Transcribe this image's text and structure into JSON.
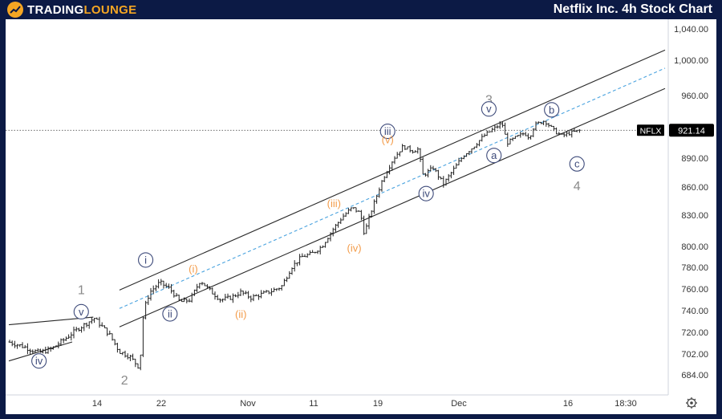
{
  "header": {
    "logo_main": "TRADING",
    "logo_accent": "LOUNGE",
    "title": "Netflix Inc. 4h Stock Chart"
  },
  "colors": {
    "frame": "#0c1a45",
    "logo": "#f5a623",
    "candle": "#1f1f1f",
    "channel": "#2a2a2a",
    "midline": "#4aa3df",
    "wave_black": "#3d4a7a",
    "wave_orange": "#f39c4a",
    "wave_gray": "#8a8a8a"
  },
  "chart_data": {
    "type": "ohlc",
    "symbol": "NFLX",
    "last_price": 921.14,
    "last_price_label": "921.14",
    "y_ticks": [
      "1,040.00",
      "1,000.00",
      "960.00",
      "890.00",
      "860.00",
      "830.00",
      "800.00",
      "780.00",
      "760.00",
      "740.00",
      "720.00",
      "702.00",
      "684.00"
    ],
    "x_ticks": [
      "14",
      "22",
      "Nov",
      "11",
      "19",
      "Dec",
      "16",
      "18:30"
    ],
    "price_path": [
      {
        "t": 0.0,
        "p": 712
      },
      {
        "t": 1.5,
        "p": 708
      },
      {
        "t": 3.0,
        "p": 703
      },
      {
        "t": 4.2,
        "p": 706
      },
      {
        "t": 5.5,
        "p": 714
      },
      {
        "t": 7.0,
        "p": 724
      },
      {
        "t": 8.5,
        "p": 733
      },
      {
        "t": 9.0,
        "p": 728
      },
      {
        "t": 10.0,
        "p": 718
      },
      {
        "t": 11.0,
        "p": 704
      },
      {
        "t": 12.0,
        "p": 700
      },
      {
        "t": 13.0,
        "p": 690
      },
      {
        "t": 13.4,
        "p": 740
      },
      {
        "t": 14.0,
        "p": 757
      },
      {
        "t": 15.0,
        "p": 766
      },
      {
        "t": 16.0,
        "p": 760
      },
      {
        "t": 17.0,
        "p": 748
      },
      {
        "t": 18.0,
        "p": 750
      },
      {
        "t": 19.0,
        "p": 768
      },
      {
        "t": 20.0,
        "p": 758
      },
      {
        "t": 21.0,
        "p": 750
      },
      {
        "t": 22.0,
        "p": 752
      },
      {
        "t": 23.0,
        "p": 757
      },
      {
        "t": 24.0,
        "p": 752
      },
      {
        "t": 25.0,
        "p": 755
      },
      {
        "t": 26.0,
        "p": 758
      },
      {
        "t": 27.0,
        "p": 762
      },
      {
        "t": 28.0,
        "p": 780
      },
      {
        "t": 29.0,
        "p": 790
      },
      {
        "t": 30.0,
        "p": 793
      },
      {
        "t": 31.0,
        "p": 800
      },
      {
        "t": 32.0,
        "p": 815
      },
      {
        "t": 33.0,
        "p": 828
      },
      {
        "t": 34.0,
        "p": 838
      },
      {
        "t": 34.8,
        "p": 832
      },
      {
        "t": 35.2,
        "p": 812
      },
      {
        "t": 36.0,
        "p": 838
      },
      {
        "t": 37.0,
        "p": 868
      },
      {
        "t": 38.0,
        "p": 888
      },
      {
        "t": 39.0,
        "p": 903
      },
      {
        "t": 40.0,
        "p": 898
      },
      {
        "t": 40.5,
        "p": 900
      },
      {
        "t": 41.0,
        "p": 872
      },
      {
        "t": 42.0,
        "p": 880
      },
      {
        "t": 43.0,
        "p": 863
      },
      {
        "t": 44.0,
        "p": 878
      },
      {
        "t": 45.0,
        "p": 893
      },
      {
        "t": 46.0,
        "p": 903
      },
      {
        "t": 47.0,
        "p": 915
      },
      {
        "t": 48.0,
        "p": 923
      },
      {
        "t": 48.8,
        "p": 929
      },
      {
        "t": 49.3,
        "p": 907
      },
      {
        "t": 50.0,
        "p": 912
      },
      {
        "t": 51.0,
        "p": 918
      },
      {
        "t": 51.5,
        "p": 913
      },
      {
        "t": 52.0,
        "p": 927
      },
      {
        "t": 53.0,
        "p": 932
      },
      {
        "t": 54.0,
        "p": 920
      },
      {
        "t": 54.7,
        "p": 915
      },
      {
        "t": 55.5,
        "p": 918
      },
      {
        "t": 56.5,
        "p": 921
      }
    ],
    "channel": {
      "upper": [
        {
          "t": 11.0,
          "p": 759
        },
        {
          "t": 63.2,
          "p": 1013
        }
      ],
      "lower": [
        {
          "t": 11.0,
          "p": 725
        },
        {
          "t": 63.2,
          "p": 968
        }
      ],
      "middle": [
        {
          "t": 11.0,
          "p": 742
        },
        {
          "t": 63.2,
          "p": 991
        }
      ],
      "left": [
        {
          "t": 0.0,
          "p": 727
        },
        {
          "t": 8.4,
          "p": 734
        },
        {
          "t": 0.0,
          "p": 696
        },
        {
          "t": 6.3,
          "p": 712
        }
      ]
    },
    "wave_labels": [
      {
        "text": "1",
        "style": "gray",
        "t": 7.2,
        "p": 759
      },
      {
        "text": "v",
        "style": "circle",
        "t": 7.2,
        "p": 739
      },
      {
        "text": "iv",
        "style": "circle",
        "t": 3.0,
        "p": 696
      },
      {
        "text": "2",
        "style": "gray",
        "t": 11.5,
        "p": 679
      },
      {
        "text": "i",
        "style": "circle",
        "t": 13.6,
        "p": 787
      },
      {
        "text": "ii",
        "style": "circle",
        "t": 16.0,
        "p": 737
      },
      {
        "text": "(i)",
        "style": "orange",
        "t": 18.3,
        "p": 779
      },
      {
        "text": "(ii)",
        "style": "orange",
        "t": 23.0,
        "p": 737
      },
      {
        "text": "(iii)",
        "style": "orange",
        "t": 32.2,
        "p": 843
      },
      {
        "text": "(iv)",
        "style": "orange",
        "t": 34.2,
        "p": 799
      },
      {
        "text": "iii",
        "style": "circle",
        "t": 37.5,
        "p": 920
      },
      {
        "text": "(v)",
        "style": "orange",
        "t": 37.5,
        "p": 911
      },
      {
        "text": "iv",
        "style": "circle",
        "t": 41.3,
        "p": 853
      },
      {
        "text": "3",
        "style": "gray",
        "t": 47.5,
        "p": 955
      },
      {
        "text": "v",
        "style": "circle",
        "t": 47.5,
        "p": 945
      },
      {
        "text": "a",
        "style": "circle",
        "t": 48.0,
        "p": 893
      },
      {
        "text": "b",
        "style": "circle",
        "t": 53.7,
        "p": 944
      },
      {
        "text": "c",
        "style": "circle",
        "t": 56.2,
        "p": 884
      },
      {
        "text": "4",
        "style": "gray",
        "t": 56.2,
        "p": 861
      }
    ]
  }
}
